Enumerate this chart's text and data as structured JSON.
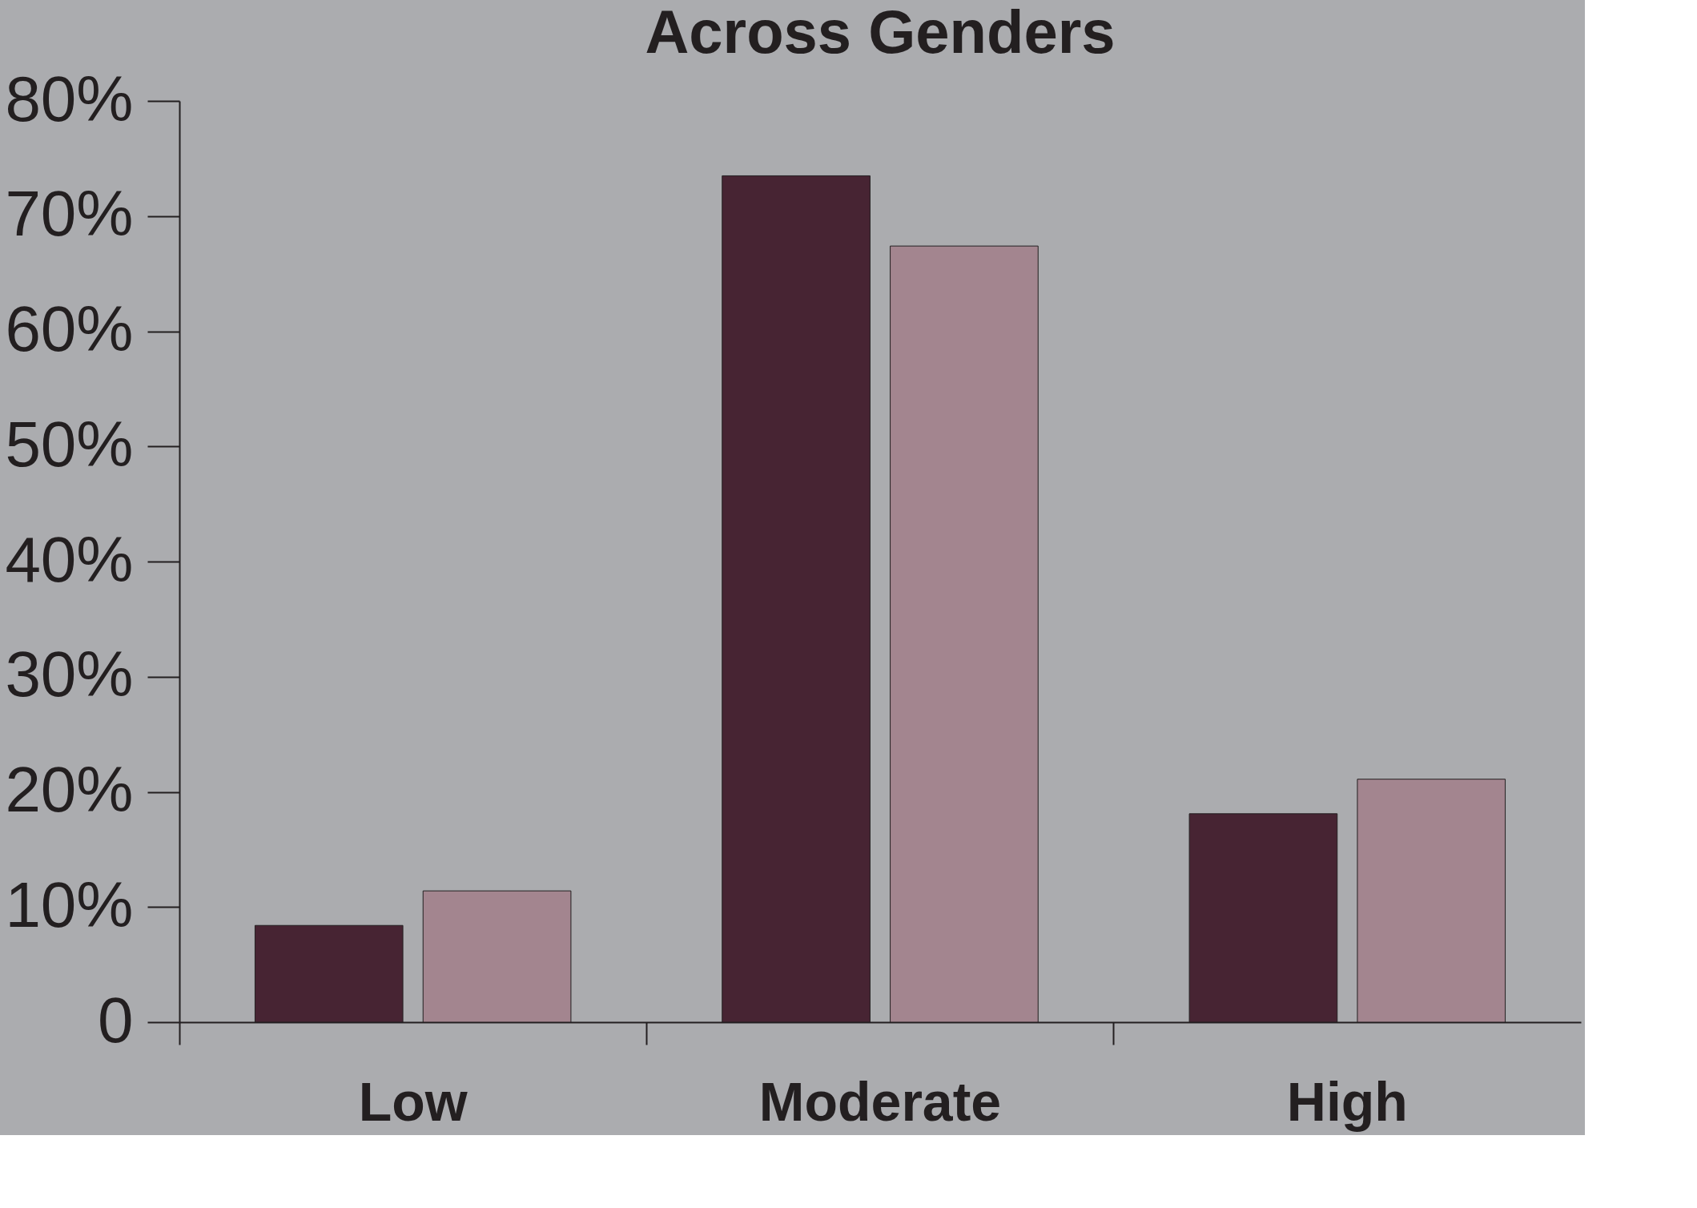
{
  "chart_data": {
    "type": "bar",
    "title": "Across Genders",
    "categories": [
      "Low",
      "Moderate",
      "High"
    ],
    "series": [
      {
        "color": "#472433",
        "values": [
          8.4,
          73.5,
          18.1
        ]
      },
      {
        "color": "#a3858f",
        "values": [
          11.4,
          67.4,
          21.1
        ]
      }
    ],
    "ylim": [
      0,
      80
    ],
    "yticks": [
      {
        "value": 0,
        "label": "0"
      },
      {
        "value": 10,
        "label": "10%"
      },
      {
        "value": 20,
        "label": "20%"
      },
      {
        "value": 30,
        "label": "30%"
      },
      {
        "value": 40,
        "label": "40%"
      },
      {
        "value": 50,
        "label": "50%"
      },
      {
        "value": 60,
        "label": "60%"
      },
      {
        "value": 70,
        "label": "70%"
      },
      {
        "value": 80,
        "label": "80%"
      }
    ],
    "grid": false,
    "legend": false
  }
}
